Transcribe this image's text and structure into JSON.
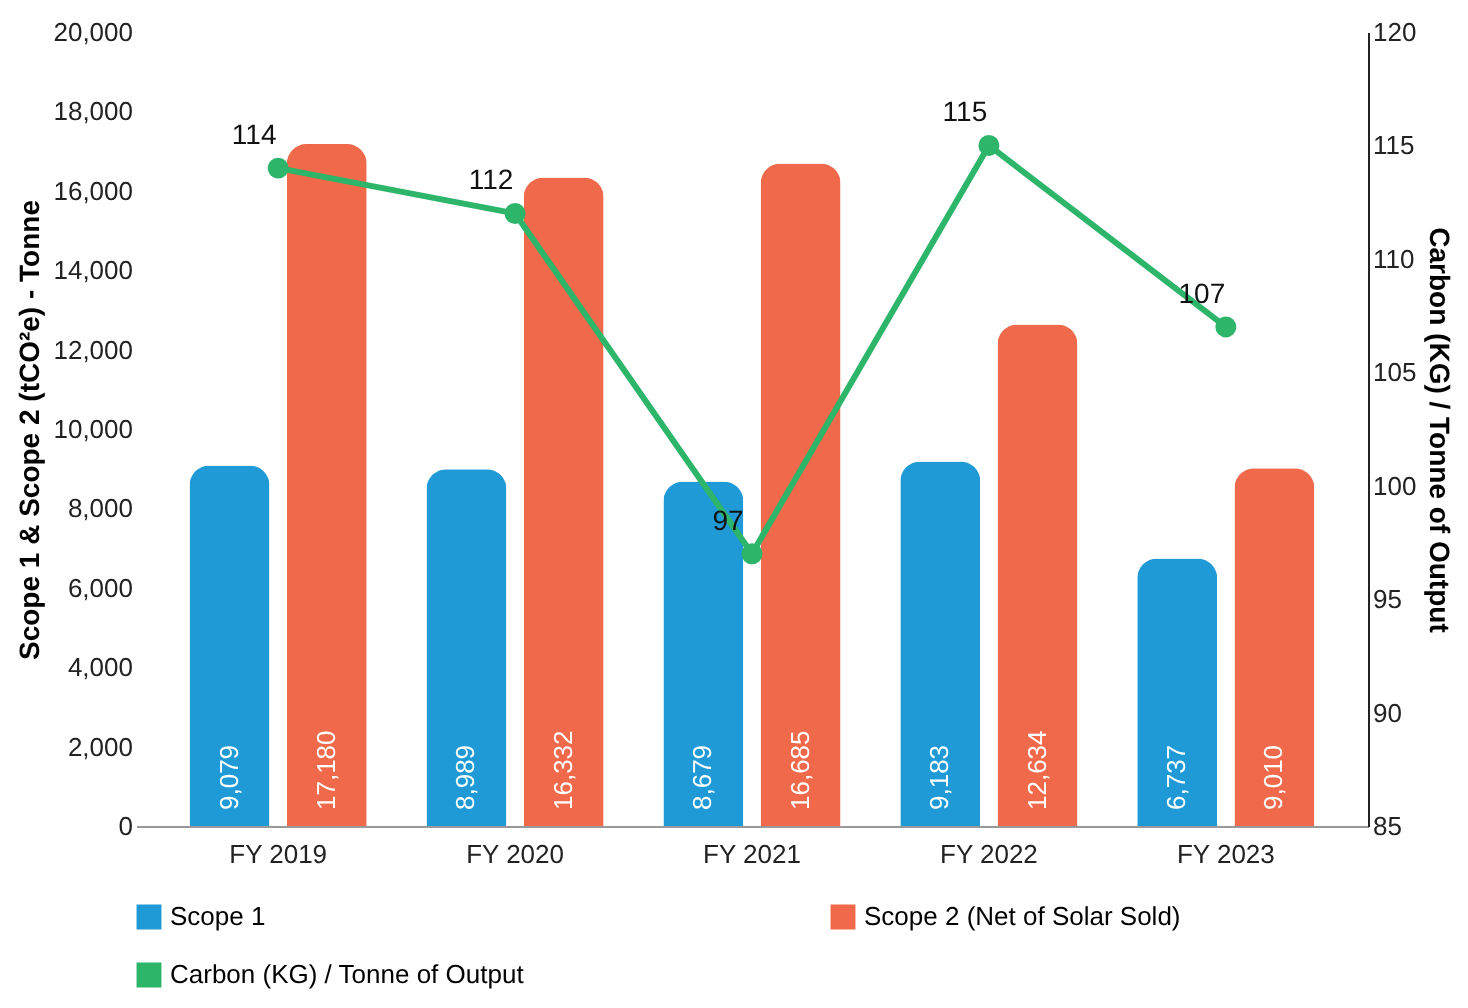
{
  "chart_data": {
    "type": "bar",
    "categories": [
      "FY 2019",
      "FY 2020",
      "FY 2021",
      "FY 2022",
      "FY 2023"
    ],
    "ylabel": "Scope 1 & Scope 2 (tCO²e) - Tonne",
    "y2label": "Carbon (KG) / Tonne of Output",
    "ylim": [
      0,
      20000
    ],
    "yticks": [
      {
        "value": 0,
        "label": "0"
      },
      {
        "value": 2000,
        "label": "2,000"
      },
      {
        "value": 4000,
        "label": "4,000"
      },
      {
        "value": 6000,
        "label": "6,000"
      },
      {
        "value": 8000,
        "label": "8,000"
      },
      {
        "value": 10000,
        "label": "10,000"
      },
      {
        "value": 12000,
        "label": "12,000"
      },
      {
        "value": 14000,
        "label": "14,000"
      },
      {
        "value": 16000,
        "label": "16,000"
      },
      {
        "value": 18000,
        "label": "18,000"
      },
      {
        "value": 20000,
        "label": "20,000"
      }
    ],
    "y2lim": [
      85,
      120
    ],
    "y2ticks": [
      85,
      90,
      95,
      100,
      105,
      110,
      115,
      120
    ],
    "series": [
      {
        "name": "Scope 1",
        "color": "#1f9ad6",
        "values": [
          9079,
          8989,
          8679,
          9183,
          6737
        ],
        "value_labels": [
          "9,079",
          "8,989",
          "8,679",
          "9,183",
          "6,737"
        ]
      },
      {
        "name": "Scope 2 (Net of Solar Sold)",
        "color": "#f0694a",
        "values": [
          17180,
          16332,
          16685,
          12634,
          9010
        ],
        "value_labels": [
          "17,180",
          "16,332",
          "16,685",
          "12,634",
          "9,010"
        ]
      },
      {
        "name": "Carbon (KG) / Tonne of Output",
        "color": "#2db56a",
        "type": "line",
        "axis": "y2",
        "values": [
          114,
          112,
          97,
          115,
          107
        ],
        "value_labels": [
          "114",
          "112",
          "97",
          "115",
          "107"
        ]
      }
    ],
    "data_labels": true,
    "marker": "circle",
    "legend": "bottom",
    "grid": false
  }
}
